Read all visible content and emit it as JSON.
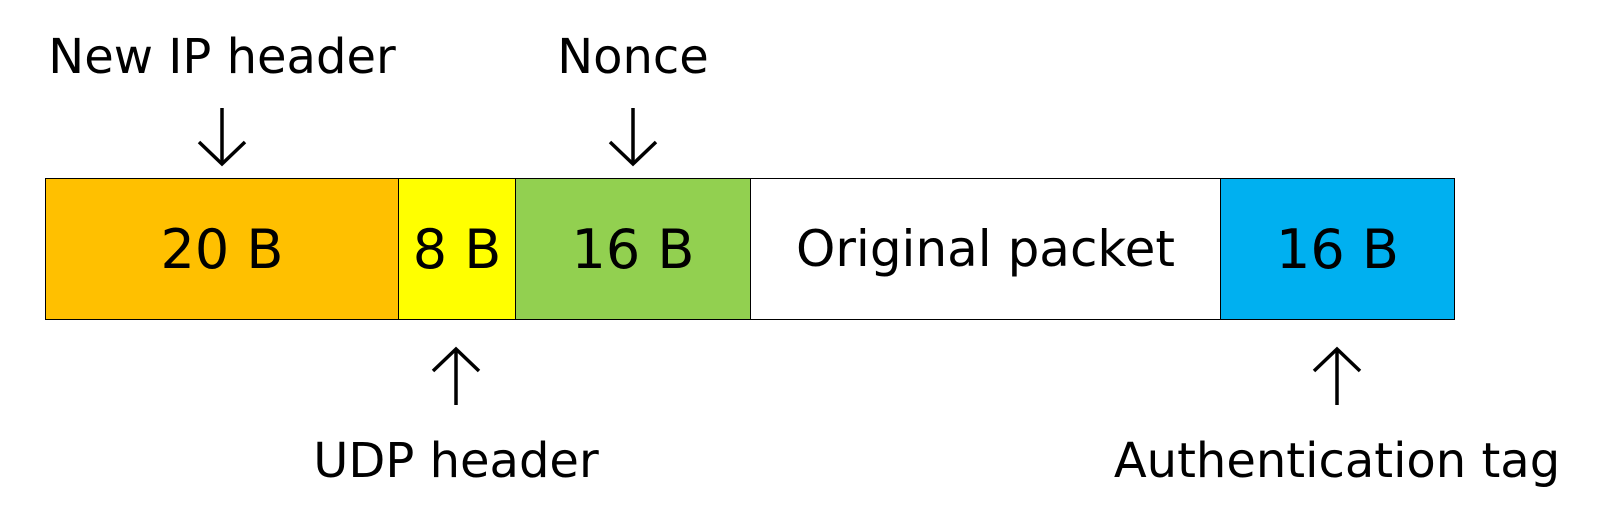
{
  "segments": [
    {
      "label": "20 B",
      "color": "#FFC000"
    },
    {
      "label": "8 B",
      "color": "#FFFF00"
    },
    {
      "label": "16 B",
      "color": "#92D050"
    },
    {
      "label": "Original packet",
      "color": "#FFFFFF"
    },
    {
      "label": "16 B",
      "color": "#00B0F0"
    }
  ],
  "labels": {
    "ip_header": "New IP header",
    "nonce": "Nonce",
    "udp_header": "UDP header",
    "auth_tag": "Authentication tag"
  },
  "icons": {
    "down_arrow": "arrow-down-icon",
    "up_arrow": "arrow-up-icon"
  }
}
